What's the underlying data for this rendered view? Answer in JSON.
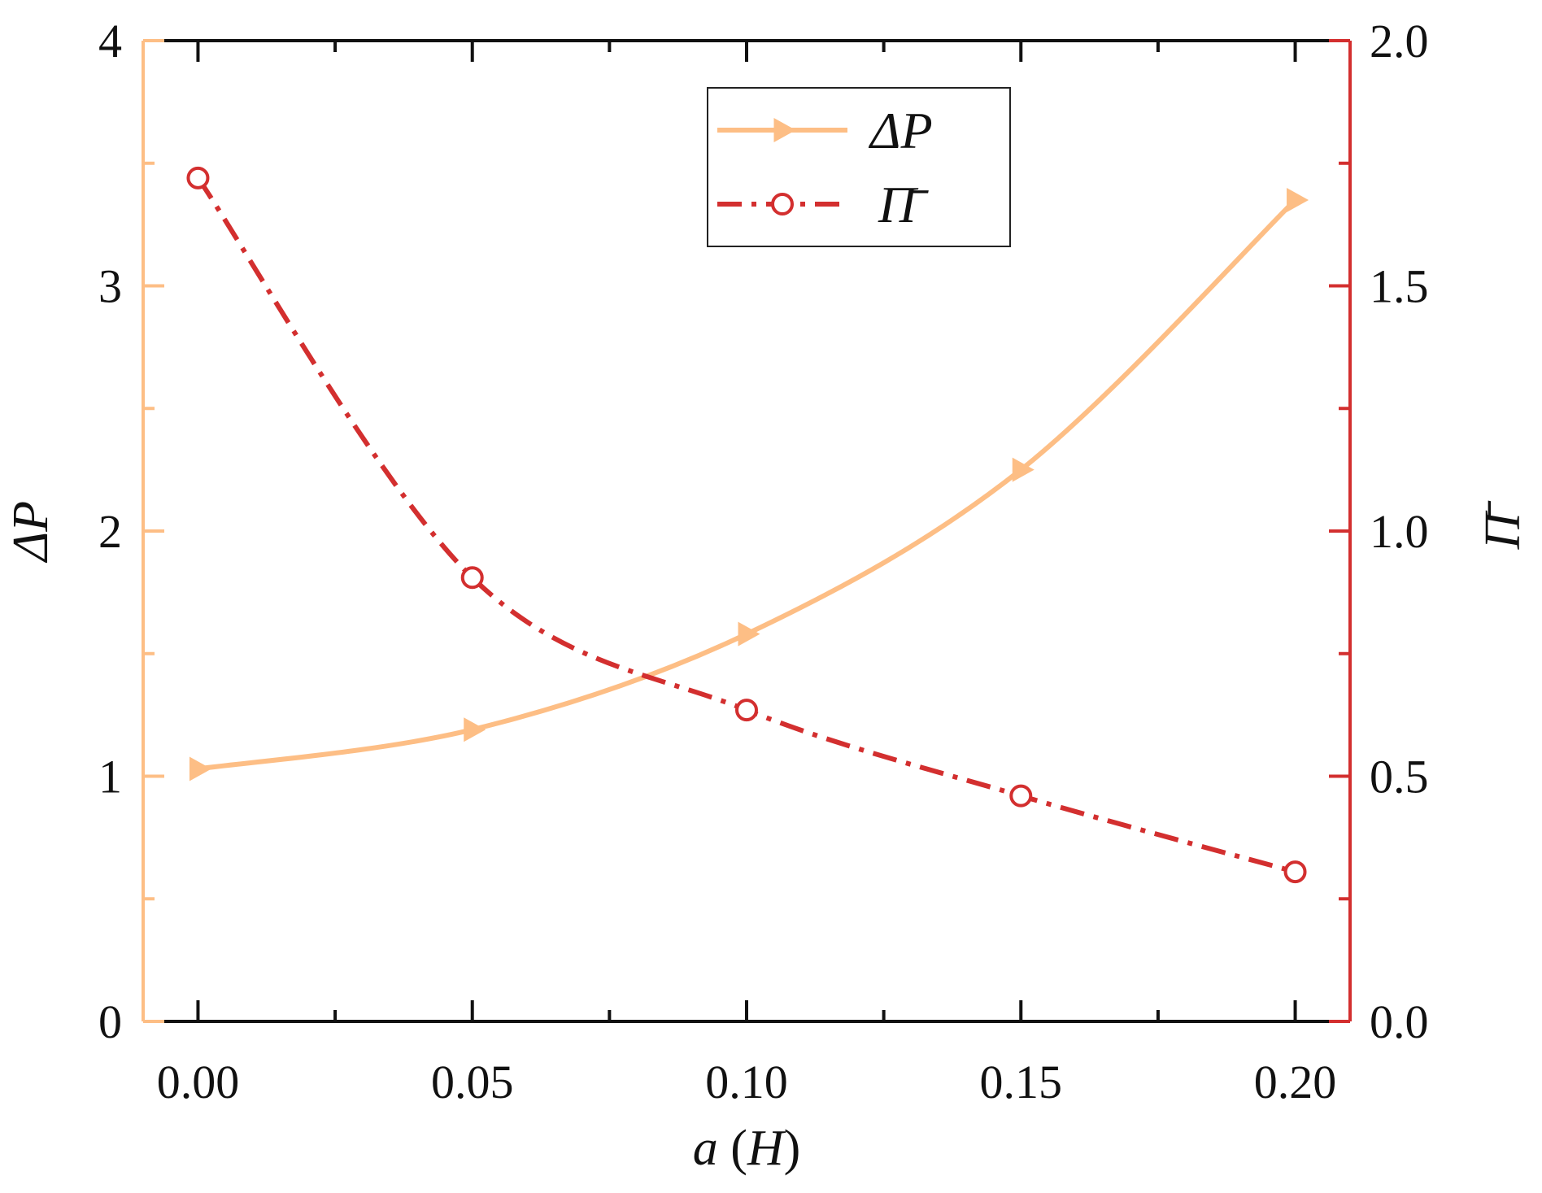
{
  "chart_data": {
    "type": "line",
    "title": "",
    "xlabel": "a (H)",
    "xlabel_var": "a",
    "xlabel_unit": "H",
    "ylabel": "ΔP",
    "ylabel_right": "Π̄",
    "xlim": [
      -0.01,
      0.21
    ],
    "ylim": [
      0,
      4
    ],
    "ylim_right": [
      0.0,
      2.0
    ],
    "x_ticks": [
      0.0,
      0.05,
      0.1,
      0.15,
      0.2
    ],
    "x_tick_labels": [
      "0.00",
      "0.05",
      "0.10",
      "0.15",
      "0.20"
    ],
    "y_ticks": [
      0,
      1,
      2,
      3,
      4
    ],
    "y_tick_labels": [
      "0",
      "1",
      "2",
      "3",
      "4"
    ],
    "y_right_ticks": [
      0.0,
      0.5,
      1.0,
      1.5,
      2.0
    ],
    "y_right_tick_labels": [
      "0.0",
      "0.5",
      "1.0",
      "1.5",
      "2.0"
    ],
    "legend_position": "top-center",
    "series": [
      {
        "name": "ΔP",
        "axis": "left",
        "marker": "right-triangle",
        "line_style": "solid",
        "color": "#FDBE85",
        "x": [
          0.0,
          0.05,
          0.1,
          0.15,
          0.2
        ],
        "values": [
          1.03,
          1.19,
          1.58,
          2.25,
          3.35
        ]
      },
      {
        "name": "Π̄",
        "axis": "right",
        "marker": "open-circle",
        "line_style": "dash-dot",
        "color": "#D32F2F",
        "x": [
          0.0,
          0.05,
          0.1,
          0.15,
          0.2
        ],
        "values": [
          1.72,
          0.905,
          0.635,
          0.46,
          0.305
        ]
      }
    ]
  }
}
